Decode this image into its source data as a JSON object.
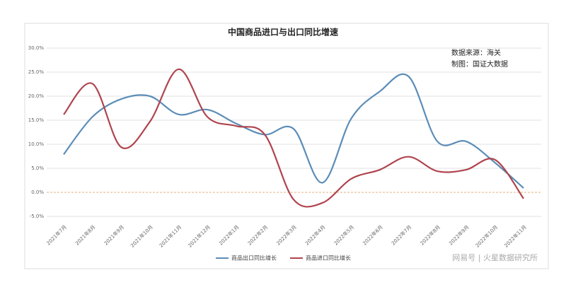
{
  "chart_data": {
    "type": "line",
    "title": "中国商品进口与出口同比增速",
    "annotations": [
      "数据来源：海关",
      "制图：国证大数据"
    ],
    "watermark": "网易号 | 火星数据研究所",
    "categories": [
      "2021年7月",
      "2021年8月",
      "2021年9月",
      "2021年10月",
      "2021年11月",
      "2021年12月",
      "2022年1月",
      "2022年2月",
      "2022年3月",
      "2022年4月",
      "2022年5月",
      "2022年6月",
      "2022年7月",
      "2022年8月",
      "2022年9月",
      "2022年10月",
      "2022年11月"
    ],
    "series": [
      {
        "name": "商品出口同比增长",
        "color": "#5b8db8",
        "values": [
          7.9,
          15.7,
          19.4,
          20,
          16.2,
          17.2,
          14.3,
          12,
          13.2,
          2,
          15.3,
          21,
          24.1,
          10.6,
          10.6,
          6.2,
          0.9
        ]
      },
      {
        "name": "商品进口同比增长",
        "color": "#b0444e",
        "values": [
          16.2,
          22.6,
          9.4,
          14.7,
          25.6,
          15.7,
          13.8,
          12,
          -1.5,
          -2.2,
          2.8,
          4.7,
          7.4,
          4.4,
          4.7,
          6.8,
          -1.3
        ]
      }
    ],
    "ylim": [
      -5,
      30
    ],
    "yticks": [
      {
        "value": -5,
        "label": "-5.0%"
      },
      {
        "value": 0,
        "label": "0.0%"
      },
      {
        "value": 5,
        "label": "5.0%"
      },
      {
        "value": 10,
        "label": "10.0%"
      },
      {
        "value": 15,
        "label": "15.0%"
      },
      {
        "value": 20,
        "label": "20.0%"
      },
      {
        "value": 25,
        "label": "25.0%"
      },
      {
        "value": 30,
        "label": "30.0%"
      }
    ],
    "grid": true,
    "legend": "bottom"
  }
}
